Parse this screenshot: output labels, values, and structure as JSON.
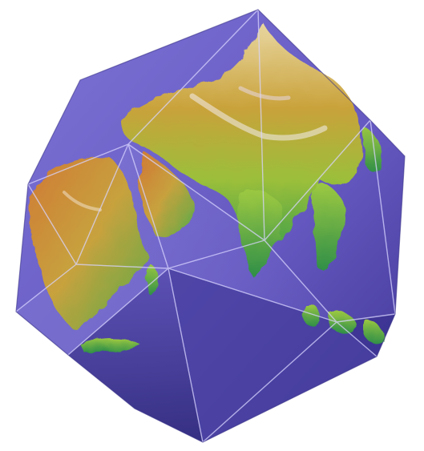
{
  "image": {
    "subject": "icosahedron-globe",
    "colors": {
      "background": "#ffffff",
      "ocean": "#6a5fc4",
      "ocean_dark": "#4a3f9e",
      "ocean_light": "#8b84d8",
      "land_low": "#3f9f4a",
      "land_mid": "#b7c23a",
      "land_high": "#c8852e",
      "land_peak": "#f0e6ea",
      "edge_highlight": "#d8d4ff"
    }
  }
}
